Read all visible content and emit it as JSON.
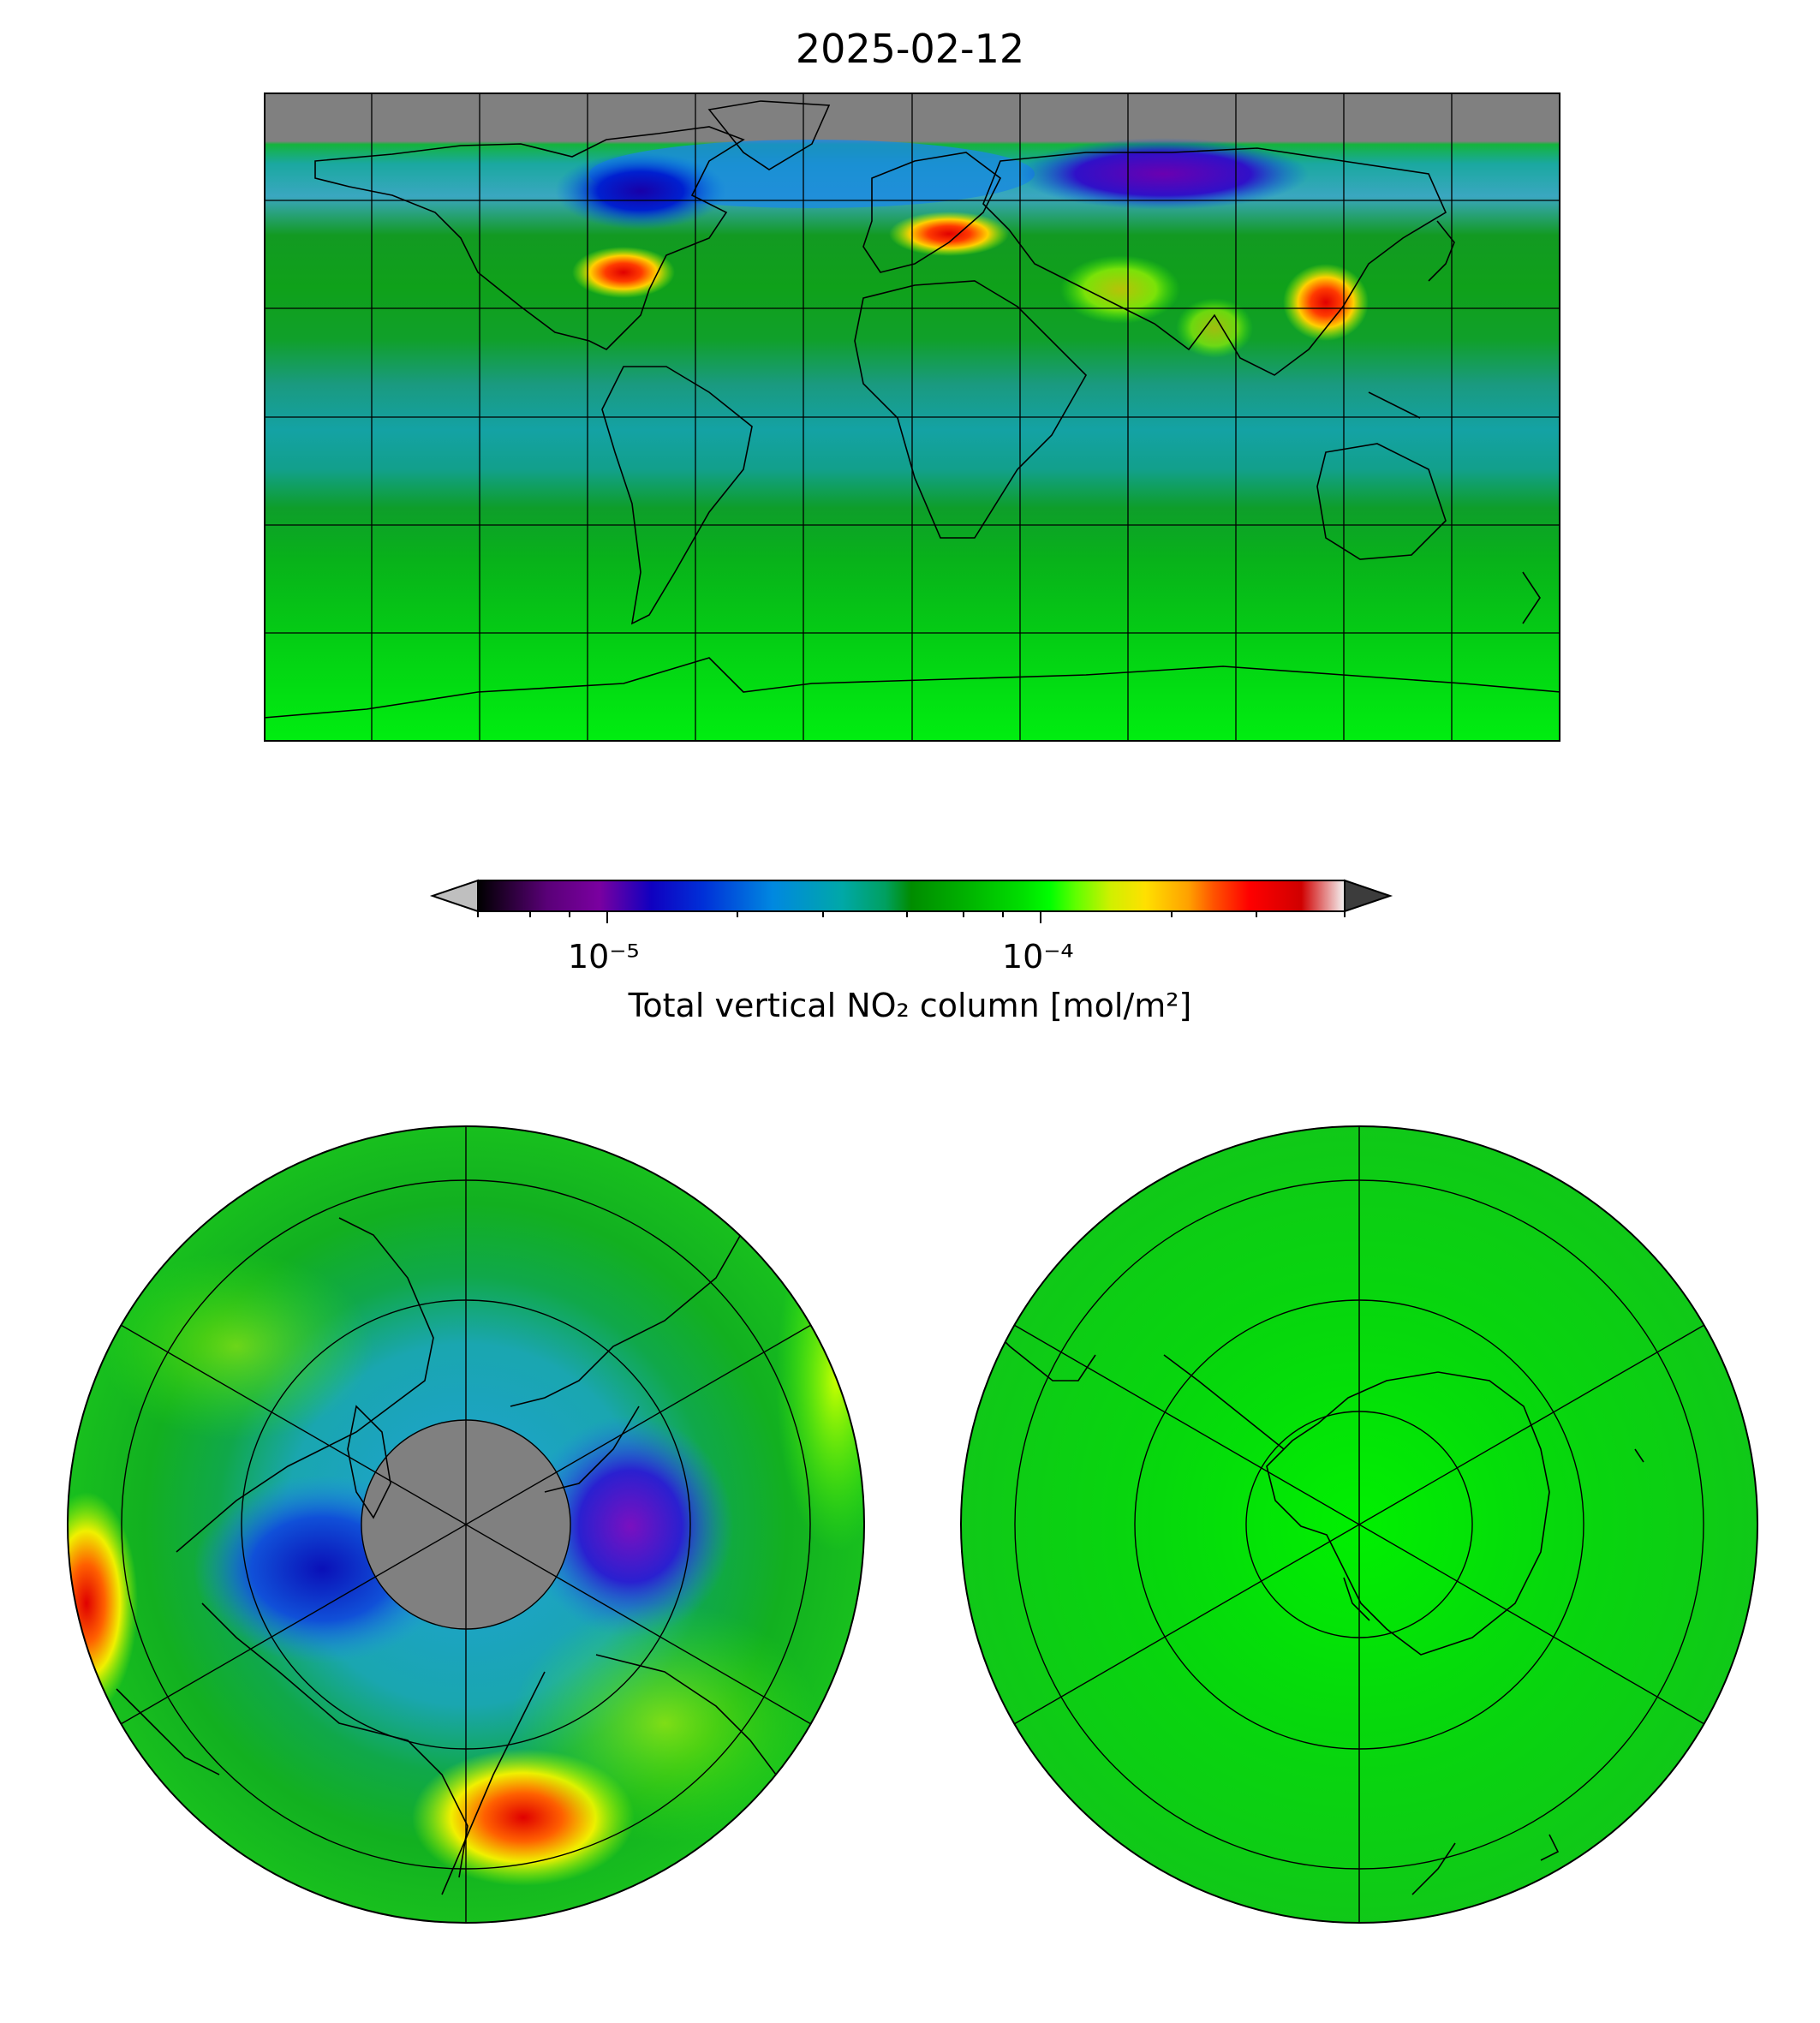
{
  "title": "2025-02-12",
  "colorbar": {
    "label": "Total vertical NO₂ column [mol/m²]",
    "scale": "log",
    "range": [
      "5e-6",
      "5e-4"
    ],
    "extend": "both",
    "ticks": [
      {
        "value": "1e-5",
        "label": "10⁻⁵"
      },
      {
        "value": "1e-4",
        "label": "10⁻⁴"
      }
    ],
    "colors": [
      "#000000",
      "#7a00a0",
      "#0000c8",
      "#0077e0",
      "#00a8a8",
      "#009600",
      "#00d000",
      "#00ff00",
      "#a0ff00",
      "#ffe000",
      "#ff9000",
      "#ff2000",
      "#d00000",
      "#ffffff"
    ],
    "under_color": "#bfbfbf",
    "over_color": "#3c3c3c"
  },
  "panels": [
    {
      "name": "global-map",
      "projection": "equirectangular",
      "region": "global"
    },
    {
      "name": "north-polar-map",
      "projection": "north-polar-stereographic",
      "region": "northern hemisphere"
    },
    {
      "name": "south-polar-map",
      "projection": "south-polar-stereographic",
      "region": "southern hemisphere"
    }
  ],
  "colors": {
    "no_data": "#808080",
    "background_field": "#00c800",
    "low_column": "#0000c8",
    "high_column": "#ff0000"
  }
}
